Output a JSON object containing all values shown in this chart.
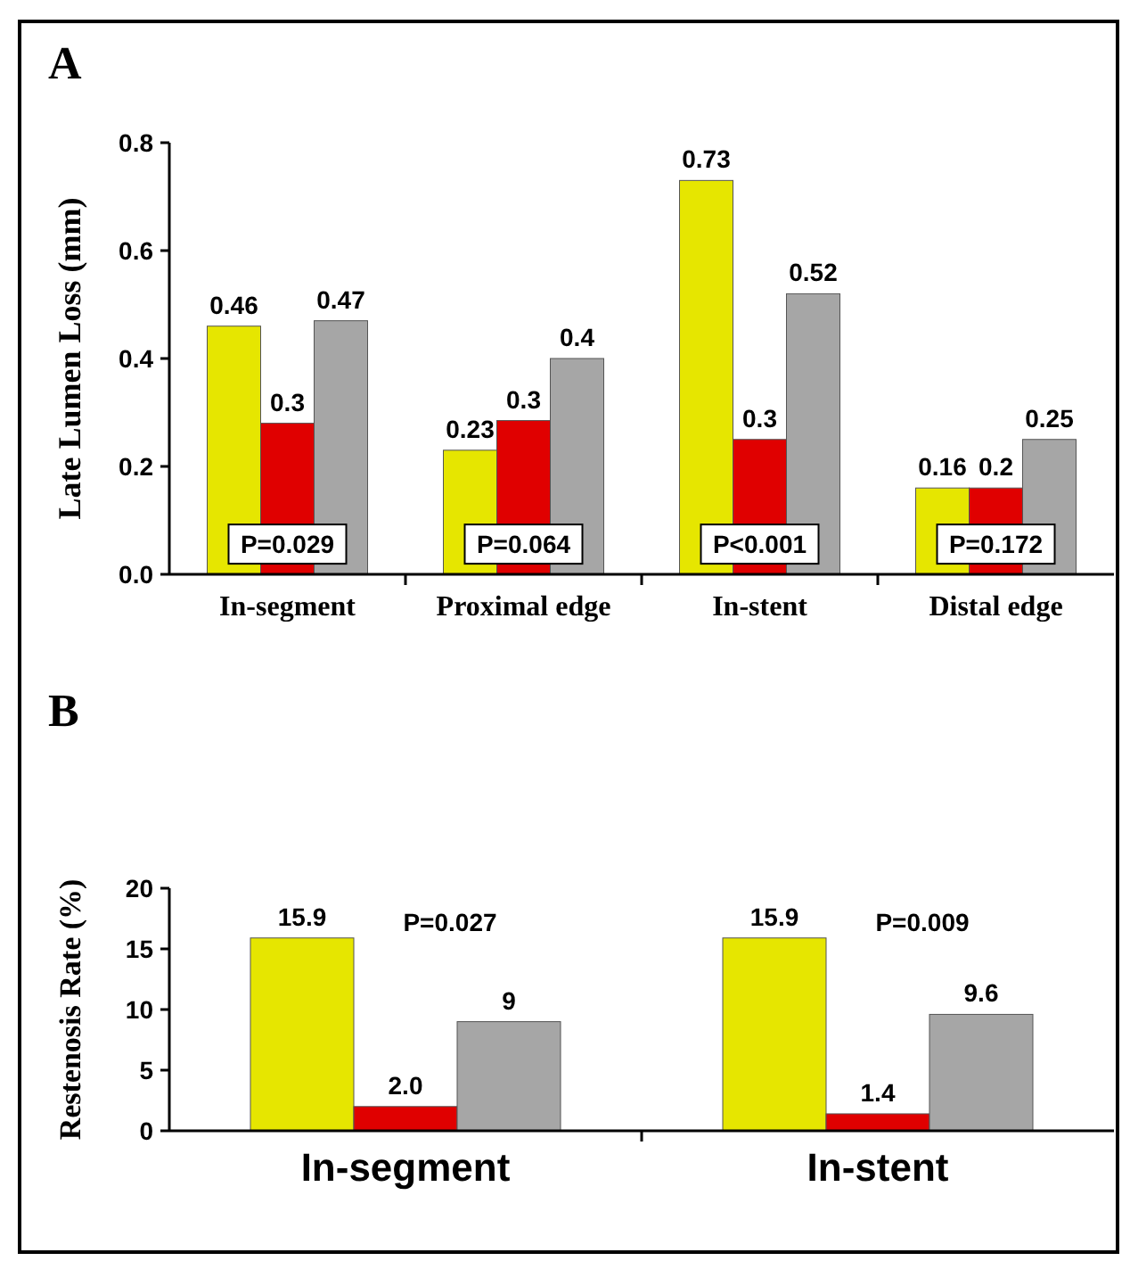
{
  "chart_data": [
    {
      "type": "bar",
      "title": "A",
      "ylabel": "Late Lumen Loss (mm)",
      "categories": [
        "In-segment",
        "Proximal edge",
        "In-stent",
        "Distal edge"
      ],
      "ylim": [
        0,
        0.8
      ],
      "yticks": [
        {
          "value": 0,
          "label": "0.0"
        },
        0.2,
        0.4,
        0.6,
        0.8
      ],
      "series": [
        {
          "color": "#e6e600",
          "values": [
            0.46,
            0.23,
            0.73,
            0.16
          ],
          "value_labels": [
            "0.46",
            "0.23",
            "0.73",
            "0.16"
          ]
        },
        {
          "color": "#e00000",
          "values": [
            0.28,
            0.285,
            0.25,
            0.16
          ],
          "value_labels": [
            "0.3",
            "0.3",
            "0.3",
            "0.2"
          ]
        },
        {
          "color": "#a6a6a6",
          "values": [
            0.47,
            0.4,
            0.52,
            0.25
          ],
          "value_labels": [
            "0.47",
            "0.4",
            "0.52",
            "0.25"
          ]
        }
      ],
      "annotations": [
        "P=0.029",
        "P=0.064",
        "P<0.001",
        "P=0.172"
      ]
    },
    {
      "type": "bar",
      "title": "B",
      "ylabel": "Restenosis Rate (%)",
      "categories": [
        "In-segment",
        "In-stent"
      ],
      "ylim": [
        0,
        20
      ],
      "yticks": [
        0,
        5,
        10,
        15,
        20
      ],
      "series": [
        {
          "color": "#e6e600",
          "values": [
            15.9,
            15.9
          ],
          "value_labels": [
            "15.9",
            "15.9"
          ]
        },
        {
          "color": "#e00000",
          "values": [
            2.0,
            1.4
          ],
          "value_labels": [
            "2.0",
            "1.4"
          ]
        },
        {
          "color": "#a6a6a6",
          "values": [
            9,
            9.6
          ],
          "value_labels": [
            "9",
            "9.6"
          ]
        }
      ],
      "annotations": [
        "P=0.027",
        "P=0.009"
      ]
    }
  ]
}
